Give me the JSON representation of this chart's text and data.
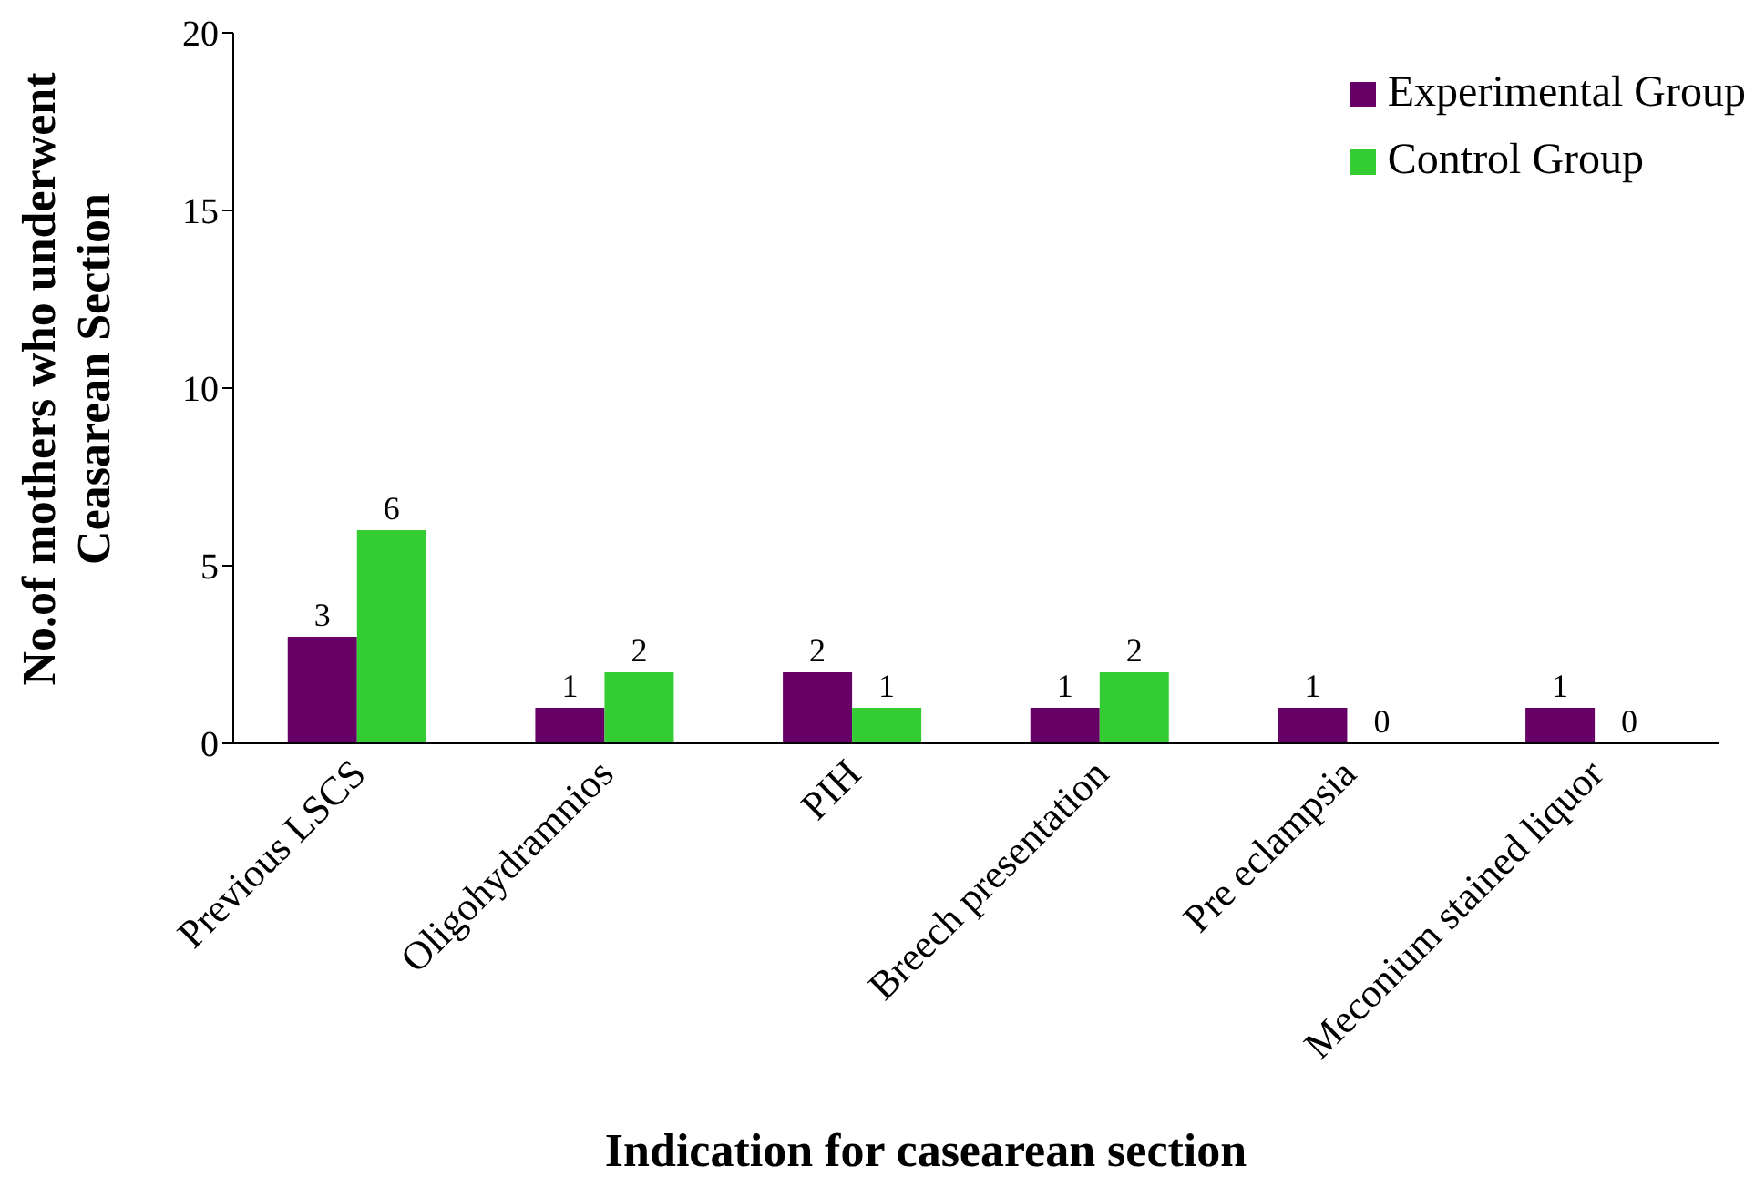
{
  "chart_data": {
    "type": "bar",
    "xlabel": "Indication for casearean section",
    "ylabel": "No.of mothers who underwent Ceasarean Section",
    "categories": [
      "Previous LSCS",
      "Oligohydramnios",
      "PIH",
      "Breech presentation",
      "Pre eclampsia",
      "Meconium stained liquor"
    ],
    "series": [
      {
        "name": "Experimental Group",
        "color": "#660066",
        "values": [
          3,
          1,
          2,
          1,
          1,
          1
        ]
      },
      {
        "name": "Control Group",
        "color": "#33cc33",
        "values": [
          6,
          2,
          1,
          2,
          0,
          0
        ]
      }
    ],
    "ylim": [
      0,
      20
    ],
    "yticks": [
      0,
      5,
      10,
      15,
      20
    ],
    "data_labels": true,
    "legend": "top right",
    "grid": false
  }
}
